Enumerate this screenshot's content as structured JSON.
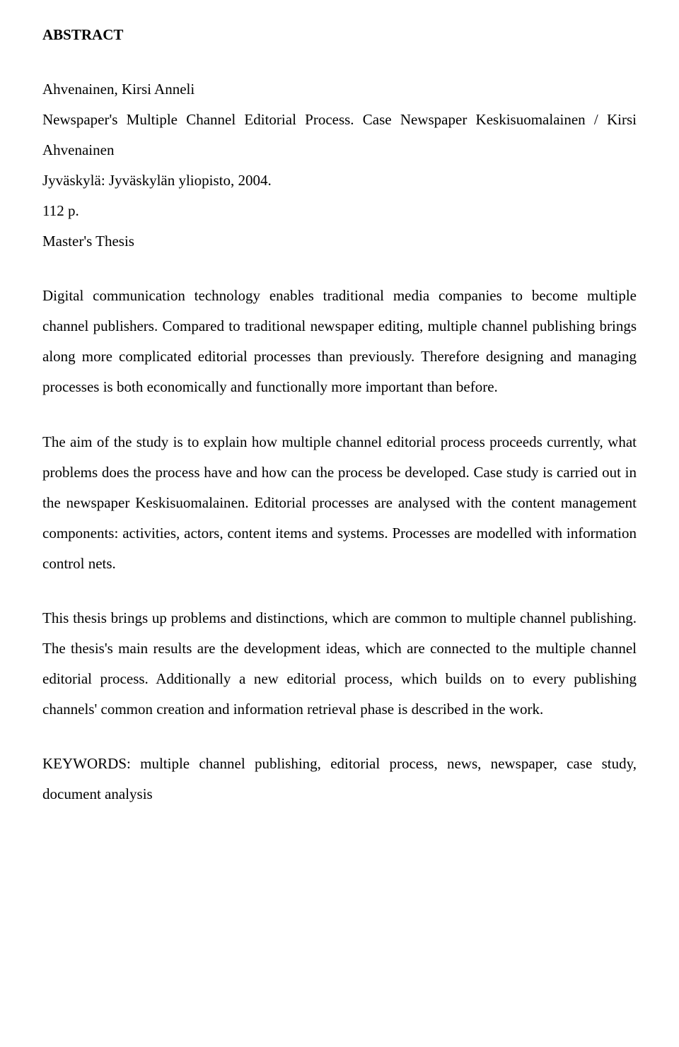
{
  "heading": "ABSTRACT",
  "p1": "Ahvenainen, Kirsi Anneli",
  "p2": "Newspaper's Multiple Channel Editorial Process. Case Newspaper Keskisuomalainen / Kirsi Ahvenainen",
  "p3": "Jyväskylä: Jyväskylän yliopisto, 2004.",
  "p4": "112 p.",
  "p5": "Master's Thesis",
  "p6": "Digital communication technology enables traditional media companies to become multiple channel publishers. Compared to traditional newspaper editing, multiple channel publishing brings along more complicated editorial processes than previously. Therefore designing and managing processes is both economically and functionally more important than before.",
  "p7": "The aim of the study is to explain how multiple channel editorial process proceeds currently, what problems does the process have and how can the process be developed. Case study is carried out in the newspaper Keskisuomalainen. Editorial processes are analysed with the content management components: activities, actors, content items and systems. Processes are modelled with information control nets.",
  "p8": "This thesis brings up problems and distinctions, which are common to multiple channel publishing. The thesis's main results are the development ideas, which are connected to the multiple channel editorial process. Additionally a new editorial process, which builds on to every publishing channels' common creation and information retrieval phase is described in the work.",
  "p9": "KEYWORDS: multiple channel publishing, editorial process, news, newspaper, case study, document analysis"
}
